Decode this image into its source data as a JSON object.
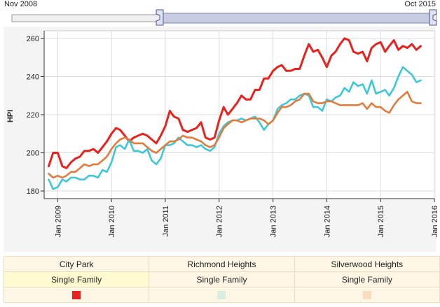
{
  "range": {
    "start_label": "Nov 2008",
    "end_label": "Oct 2015"
  },
  "chart_data": {
    "type": "line",
    "ylabel": "HPI",
    "ylim": [
      176,
      264
    ],
    "xlim": [
      "2008-10-01",
      "2016-01-01"
    ],
    "yticks": [
      180,
      200,
      220,
      240,
      260
    ],
    "xticks": [
      "Jan 2009",
      "Jan 2010",
      "Jan 2011",
      "Jan 2012",
      "Jan 2013",
      "Jan 2014",
      "Jan 2015",
      "Jan 2016"
    ],
    "grid": true,
    "x": [
      "2008-11",
      "2008-12",
      "2009-01",
      "2009-02",
      "2009-03",
      "2009-04",
      "2009-05",
      "2009-06",
      "2009-07",
      "2009-08",
      "2009-09",
      "2009-10",
      "2009-11",
      "2009-12",
      "2010-01",
      "2010-02",
      "2010-03",
      "2010-04",
      "2010-05",
      "2010-06",
      "2010-07",
      "2010-08",
      "2010-09",
      "2010-10",
      "2010-11",
      "2010-12",
      "2011-01",
      "2011-02",
      "2011-03",
      "2011-04",
      "2011-05",
      "2011-06",
      "2011-07",
      "2011-08",
      "2011-09",
      "2011-10",
      "2011-11",
      "2011-12",
      "2012-01",
      "2012-02",
      "2012-03",
      "2012-04",
      "2012-05",
      "2012-06",
      "2012-07",
      "2012-08",
      "2012-09",
      "2012-10",
      "2012-11",
      "2012-12",
      "2013-01",
      "2013-02",
      "2013-03",
      "2013-04",
      "2013-05",
      "2013-06",
      "2013-07",
      "2013-08",
      "2013-09",
      "2013-10",
      "2013-11",
      "2013-12",
      "2014-01",
      "2014-02",
      "2014-03",
      "2014-04",
      "2014-05",
      "2014-06",
      "2014-07",
      "2014-08",
      "2014-09",
      "2014-10",
      "2014-11",
      "2014-12",
      "2015-01",
      "2015-02",
      "2015-03",
      "2015-04",
      "2015-05",
      "2015-06",
      "2015-07",
      "2015-08",
      "2015-09",
      "2015-10"
    ],
    "series": [
      {
        "name": "City Park",
        "color": "#e8221c",
        "values": [
          193,
          200,
          200,
          193,
          192,
          195,
          197,
          198,
          201,
          201,
          202,
          200,
          203,
          206,
          210,
          213,
          212,
          209,
          206,
          208,
          209,
          210,
          209,
          207,
          205,
          209,
          214,
          222,
          219,
          218,
          212,
          211,
          212,
          213,
          216,
          208,
          207,
          208,
          217,
          224,
          220,
          223,
          226,
          230,
          228,
          228,
          233,
          233,
          239,
          239,
          243,
          245,
          246,
          243,
          243,
          244,
          244,
          251,
          257,
          253,
          254,
          250,
          245,
          251,
          253,
          257,
          260,
          259,
          253,
          252,
          253,
          248,
          255,
          257,
          258,
          253,
          256,
          259,
          254,
          256,
          255,
          257,
          254,
          256
        ]
      },
      {
        "name": "Richmond Heights",
        "color": "#3dc7d8",
        "values": [
          186,
          181,
          182,
          186,
          185,
          187,
          187,
          186,
          186,
          188,
          188,
          187,
          191,
          190,
          195,
          203,
          204,
          202,
          207,
          201,
          201,
          200,
          202,
          196,
          194,
          197,
          204,
          204,
          205,
          208,
          206,
          204,
          204,
          203,
          204,
          202,
          201,
          203,
          210,
          214,
          216,
          217,
          217,
          218,
          217,
          218,
          219,
          216,
          212,
          215,
          217,
          223,
          225,
          226,
          228,
          228,
          230,
          231,
          230,
          224,
          224,
          222,
          228,
          227,
          229,
          230,
          234,
          232,
          237,
          235,
          236,
          231,
          238,
          231,
          232,
          233,
          230,
          234,
          240,
          245,
          243,
          241,
          237,
          238
        ]
      },
      {
        "name": "Silverwood Heights",
        "color": "#e37c3a",
        "values": [
          189,
          187,
          188,
          187,
          188,
          190,
          190,
          192,
          194,
          193,
          194,
          194,
          196,
          198,
          202,
          205,
          207,
          208,
          207,
          205,
          205,
          205,
          203,
          201,
          200,
          202,
          204,
          206,
          206,
          207,
          209,
          208,
          208,
          207,
          206,
          204,
          203,
          204,
          208,
          213,
          215,
          217,
          217,
          216,
          217,
          218,
          218,
          218,
          217,
          215,
          217,
          221,
          224,
          224,
          225,
          227,
          228,
          231,
          231,
          227,
          226,
          226,
          227,
          227,
          226,
          225,
          225,
          225,
          225,
          225,
          226,
          223,
          226,
          224,
          224,
          222,
          221,
          225,
          228,
          230,
          232,
          227,
          226,
          226
        ]
      }
    ]
  },
  "legend": {
    "areas": [
      "City Park",
      "Richmond Heights",
      "Silverwood Heights"
    ],
    "types": [
      "Single Family",
      "Single Family",
      "Single Family"
    ],
    "swatch_colors": [
      "#e8221c",
      "#d6efe0",
      "#f8ddc0"
    ]
  }
}
